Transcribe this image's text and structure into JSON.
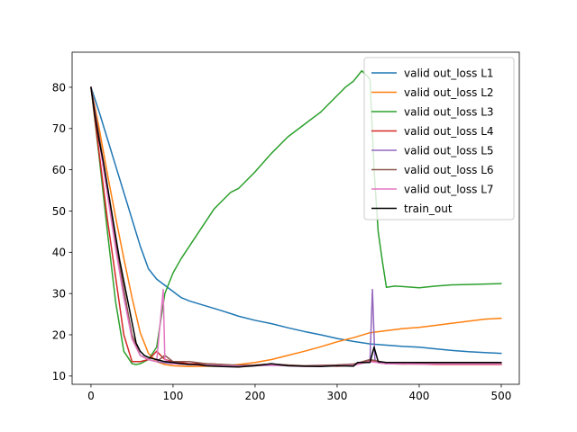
{
  "chart_data": {
    "type": "line",
    "title": "",
    "xlabel": "",
    "ylabel": "",
    "xlim": [
      -23,
      522
    ],
    "ylim": [
      8.0,
      88.5
    ],
    "xticks": [
      0,
      100,
      200,
      300,
      400,
      500
    ],
    "yticks": [
      10,
      20,
      30,
      40,
      50,
      60,
      70,
      80
    ],
    "grid": false,
    "legend_position": "top-right",
    "series": [
      {
        "name": "valid out_loss L1",
        "color": "#1f77b4",
        "x": [
          0,
          10,
          20,
          30,
          40,
          50,
          60,
          70,
          80,
          90,
          100,
          110,
          120,
          140,
          160,
          180,
          200,
          220,
          240,
          260,
          280,
          300,
          320,
          340,
          360,
          380,
          400,
          420,
          440,
          460,
          480,
          500
        ],
        "y": [
          80,
          74,
          67.5,
          61,
          54.5,
          48,
          41.5,
          36,
          33.5,
          32,
          30.5,
          29,
          28.2,
          27,
          25.8,
          24.5,
          23.5,
          22.7,
          21.7,
          20.8,
          20,
          19.1,
          18.4,
          17.8,
          17.5,
          17.2,
          17,
          16.6,
          16.2,
          15.9,
          15.7,
          15.5
        ]
      },
      {
        "name": "valid out_loss L2",
        "color": "#ff7f0e",
        "x": [
          0,
          10,
          20,
          30,
          40,
          50,
          60,
          70,
          80,
          90,
          100,
          120,
          140,
          160,
          180,
          200,
          220,
          240,
          260,
          280,
          300,
          320,
          340,
          360,
          380,
          400,
          420,
          440,
          460,
          480,
          500
        ],
        "y": [
          80,
          70,
          59,
          48.5,
          38.5,
          29,
          20.5,
          15.5,
          13.5,
          12.8,
          12.5,
          12.3,
          12.4,
          12.4,
          12.8,
          13.3,
          14,
          15,
          16,
          17.1,
          18.3,
          19.3,
          20.5,
          21,
          21.5,
          21.8,
          22.3,
          22.8,
          23.3,
          23.8,
          24
        ]
      },
      {
        "name": "valid out_loss L3",
        "color": "#2ca02c",
        "x": [
          0,
          10,
          20,
          30,
          40,
          50,
          55,
          60,
          70,
          80,
          90,
          100,
          110,
          120,
          130,
          140,
          150,
          160,
          170,
          180,
          190,
          200,
          220,
          240,
          260,
          280,
          300,
          310,
          320,
          330,
          340,
          345,
          350,
          355,
          360,
          370,
          380,
          400,
          420,
          440,
          460,
          480,
          500
        ],
        "y": [
          80,
          63,
          45,
          28,
          16,
          13,
          12.8,
          13,
          14,
          17,
          30,
          35,
          38.5,
          41.5,
          44.5,
          47.5,
          50.5,
          52.5,
          54.5,
          55.5,
          57.5,
          59.5,
          64,
          68,
          71,
          74,
          78,
          80,
          81.5,
          84,
          82,
          60,
          45,
          38,
          31.5,
          31.8,
          31.7,
          31.4,
          31.8,
          32.1,
          32.2,
          32.3,
          32.4
        ]
      },
      {
        "name": "valid out_loss L4",
        "color": "#d62728",
        "x": [
          0,
          10,
          20,
          30,
          40,
          50,
          60,
          70,
          80,
          90,
          100,
          120,
          140,
          160,
          180,
          200,
          220,
          240,
          260,
          280,
          300,
          320,
          340,
          360,
          380,
          400,
          420,
          440,
          460,
          480,
          500
        ],
        "y": [
          80,
          64,
          48,
          34,
          20,
          13.5,
          13.5,
          14,
          16,
          14,
          13.5,
          13,
          13,
          12.8,
          12.5,
          12.6,
          12.8,
          12.6,
          12.4,
          12.5,
          12.4,
          12.6,
          13.8,
          13,
          12.9,
          12.9,
          12.8,
          12.8,
          12.8,
          12.8,
          12.8
        ]
      },
      {
        "name": "valid out_loss L5",
        "color": "#9467bd",
        "x": [
          0,
          10,
          20,
          30,
          40,
          50,
          60,
          70,
          80,
          90,
          100,
          120,
          140,
          160,
          180,
          200,
          220,
          240,
          260,
          280,
          300,
          320,
          340,
          343,
          346,
          350,
          360,
          380,
          400,
          420,
          440,
          460,
          480,
          500
        ],
        "y": [
          80,
          68,
          55,
          42,
          30,
          19,
          15,
          14,
          13.5,
          13.2,
          13,
          12.8,
          12.6,
          12.5,
          12.4,
          12.5,
          12.6,
          12.5,
          12.4,
          12.4,
          12.6,
          12.8,
          13.5,
          31,
          14,
          13.2,
          13,
          13,
          13,
          13,
          13,
          13,
          13,
          13
        ]
      },
      {
        "name": "valid out_loss L6",
        "color": "#8c564b",
        "x": [
          0,
          10,
          20,
          30,
          40,
          50,
          60,
          70,
          80,
          90,
          100,
          120,
          140,
          160,
          180,
          200,
          220,
          240,
          260,
          280,
          300,
          320,
          340,
          360,
          380,
          400,
          420,
          440,
          460,
          480,
          500
        ],
        "y": [
          80,
          68,
          56,
          43,
          31,
          20,
          15,
          14,
          13.5,
          15,
          13.5,
          13.5,
          13,
          12.8,
          12.6,
          12.7,
          12.9,
          12.7,
          12.5,
          12.6,
          12.7,
          12.9,
          14,
          13.2,
          13,
          13,
          13,
          13,
          13,
          13,
          13
        ]
      },
      {
        "name": "valid out_loss L7",
        "color": "#e377c2",
        "x": [
          0,
          10,
          20,
          30,
          40,
          50,
          60,
          70,
          80,
          88,
          90,
          100,
          120,
          140,
          160,
          180,
          200,
          220,
          240,
          260,
          280,
          300,
          320,
          340,
          360,
          380,
          400,
          420,
          440,
          460,
          480,
          500
        ],
        "y": [
          80,
          67,
          54,
          41,
          29,
          19,
          15,
          14,
          13.5,
          31,
          14,
          13,
          12.8,
          12.6,
          12.5,
          12.4,
          12.5,
          12.7,
          12.5,
          12.3,
          12.4,
          12.5,
          12.6,
          13.5,
          13,
          13,
          12.9,
          12.9,
          12.9,
          12.9,
          12.9,
          12.9
        ]
      },
      {
        "name": "train_out",
        "color": "#000000",
        "x": [
          0,
          5,
          10,
          15,
          20,
          25,
          30,
          35,
          40,
          45,
          50,
          55,
          60,
          65,
          70,
          80,
          90,
          100,
          110,
          120,
          130,
          140,
          150,
          160,
          180,
          200,
          220,
          240,
          260,
          280,
          300,
          320,
          325,
          340,
          345,
          350,
          360,
          380,
          400,
          420,
          440,
          460,
          480,
          500
        ],
        "y": [
          80,
          73,
          67,
          62,
          56,
          50,
          44,
          38,
          33,
          28,
          23,
          18,
          16,
          15,
          14.5,
          14,
          13.5,
          13.3,
          13,
          12.8,
          12.8,
          12.5,
          12.4,
          12.3,
          12.2,
          12.5,
          13,
          12.5,
          12.4,
          12.3,
          12.5,
          12.4,
          13.3,
          13.3,
          17,
          13.5,
          13.3,
          13.3,
          13.3,
          13.3,
          13.3,
          13.3,
          13.3,
          13.3
        ]
      }
    ]
  }
}
